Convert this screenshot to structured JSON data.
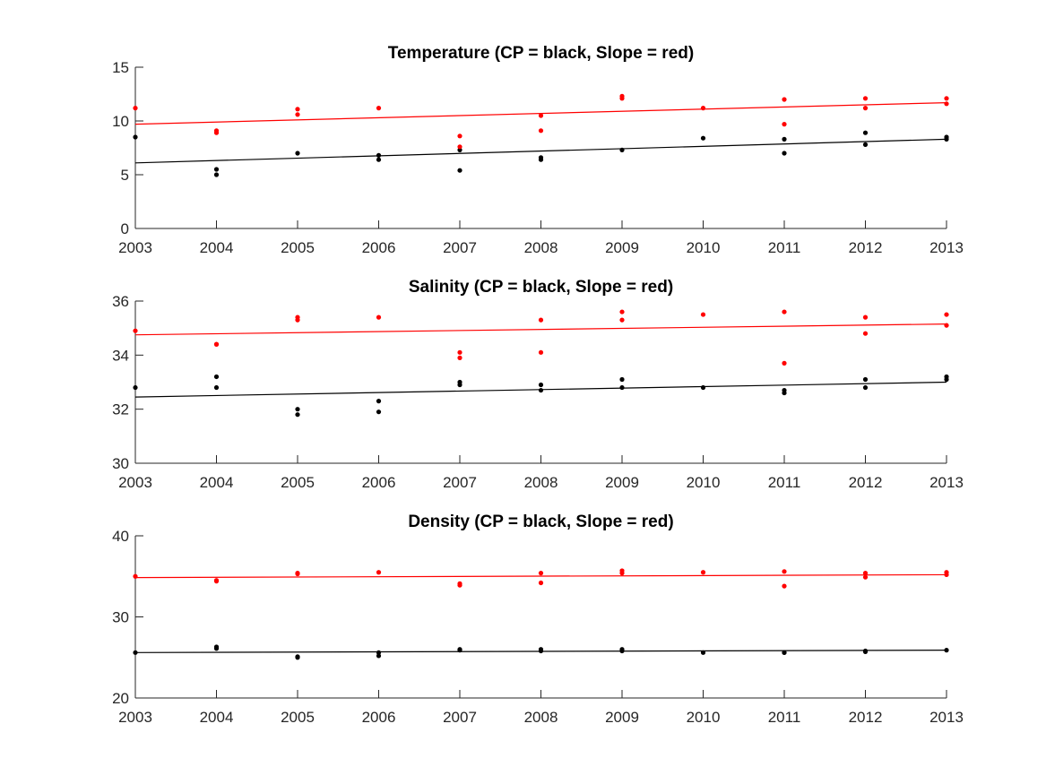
{
  "chart_data": [
    {
      "type": "scatter",
      "title": "Temperature (CP = black, Slope = red)",
      "xlabel": "",
      "ylabel": "",
      "xlim": [
        2003,
        2013
      ],
      "ylim": [
        0,
        15
      ],
      "xticks": [
        "2003",
        "2004",
        "2005",
        "2006",
        "2007",
        "2008",
        "2009",
        "2010",
        "2011",
        "2012",
        "2013"
      ],
      "yticks": [
        "0",
        "5",
        "10",
        "15"
      ],
      "grid": false,
      "series": [
        {
          "color": "#000000",
          "points": [
            [
              2003,
              8.5
            ],
            [
              2004,
              5.5
            ],
            [
              2004,
              5.0
            ],
            [
              2005,
              7.0
            ],
            [
              2006,
              6.8
            ],
            [
              2006,
              6.4
            ],
            [
              2007,
              7.3
            ],
            [
              2007,
              5.4
            ],
            [
              2008,
              6.6
            ],
            [
              2008,
              6.4
            ],
            [
              2009,
              7.3
            ],
            [
              2010,
              8.4
            ],
            [
              2011,
              8.3
            ],
            [
              2011,
              7.0
            ],
            [
              2012,
              8.9
            ],
            [
              2012,
              7.8
            ],
            [
              2013,
              8.5
            ],
            [
              2013,
              8.3
            ]
          ],
          "trend": [
            [
              2003,
              6.1
            ],
            [
              2013,
              8.3
            ]
          ]
        },
        {
          "color": "#ff0000",
          "points": [
            [
              2003,
              11.2
            ],
            [
              2004,
              9.1
            ],
            [
              2004,
              8.9
            ],
            [
              2005,
              11.1
            ],
            [
              2005,
              10.6
            ],
            [
              2006,
              11.2
            ],
            [
              2007,
              8.6
            ],
            [
              2007,
              7.6
            ],
            [
              2008,
              10.5
            ],
            [
              2008,
              9.1
            ],
            [
              2009,
              12.3
            ],
            [
              2009,
              12.1
            ],
            [
              2010,
              11.2
            ],
            [
              2011,
              12.0
            ],
            [
              2011,
              9.7
            ],
            [
              2012,
              12.1
            ],
            [
              2012,
              11.2
            ],
            [
              2013,
              12.1
            ],
            [
              2013,
              11.6
            ]
          ],
          "trend": [
            [
              2003,
              9.7
            ],
            [
              2013,
              11.7
            ]
          ]
        }
      ]
    },
    {
      "type": "scatter",
      "title": "Salinity (CP = black, Slope = red)",
      "xlabel": "",
      "ylabel": "",
      "xlim": [
        2003,
        2013
      ],
      "ylim": [
        30,
        36
      ],
      "xticks": [
        "2003",
        "2004",
        "2005",
        "2006",
        "2007",
        "2008",
        "2009",
        "2010",
        "2011",
        "2012",
        "2013"
      ],
      "yticks": [
        "30",
        "32",
        "34",
        "36"
      ],
      "grid": false,
      "series": [
        {
          "color": "#000000",
          "points": [
            [
              2003,
              32.8
            ],
            [
              2004,
              33.2
            ],
            [
              2004,
              32.8
            ],
            [
              2005,
              32.0
            ],
            [
              2005,
              31.8
            ],
            [
              2006,
              32.3
            ],
            [
              2006,
              31.9
            ],
            [
              2007,
              33.0
            ],
            [
              2007,
              32.9
            ],
            [
              2008,
              32.9
            ],
            [
              2008,
              32.7
            ],
            [
              2009,
              33.1
            ],
            [
              2009,
              32.8
            ],
            [
              2010,
              32.8
            ],
            [
              2011,
              32.7
            ],
            [
              2011,
              32.6
            ],
            [
              2012,
              33.1
            ],
            [
              2012,
              32.8
            ],
            [
              2013,
              33.2
            ],
            [
              2013,
              33.1
            ]
          ],
          "trend": [
            [
              2003,
              32.45
            ],
            [
              2013,
              33.0
            ]
          ]
        },
        {
          "color": "#ff0000",
          "points": [
            [
              2003,
              34.9
            ],
            [
              2004,
              34.4
            ],
            [
              2004,
              34.4
            ],
            [
              2005,
              35.4
            ],
            [
              2005,
              35.3
            ],
            [
              2006,
              35.4
            ],
            [
              2007,
              34.1
            ],
            [
              2007,
              33.9
            ],
            [
              2008,
              35.3
            ],
            [
              2008,
              34.1
            ],
            [
              2009,
              35.6
            ],
            [
              2009,
              35.3
            ],
            [
              2010,
              35.5
            ],
            [
              2011,
              35.6
            ],
            [
              2011,
              33.7
            ],
            [
              2012,
              35.4
            ],
            [
              2012,
              34.8
            ],
            [
              2013,
              35.5
            ],
            [
              2013,
              35.1
            ]
          ],
          "trend": [
            [
              2003,
              34.75
            ],
            [
              2013,
              35.15
            ]
          ]
        }
      ]
    },
    {
      "type": "scatter",
      "title": "Density (CP = black, Slope = red)",
      "xlabel": "",
      "ylabel": "",
      "xlim": [
        2003,
        2013
      ],
      "ylim": [
        20,
        40
      ],
      "xticks": [
        "2003",
        "2004",
        "2005",
        "2006",
        "2007",
        "2008",
        "2009",
        "2010",
        "2011",
        "2012",
        "2013"
      ],
      "yticks": [
        "20",
        "30",
        "40"
      ],
      "grid": false,
      "series": [
        {
          "color": "#000000",
          "points": [
            [
              2003,
              25.6
            ],
            [
              2004,
              26.3
            ],
            [
              2004,
              26.1
            ],
            [
              2005,
              25.1
            ],
            [
              2005,
              25.0
            ],
            [
              2006,
              25.6
            ],
            [
              2006,
              25.2
            ],
            [
              2007,
              26.0
            ],
            [
              2007,
              25.9
            ],
            [
              2008,
              26.0
            ],
            [
              2008,
              25.8
            ],
            [
              2009,
              26.0
            ],
            [
              2009,
              25.8
            ],
            [
              2010,
              25.6
            ],
            [
              2011,
              25.6
            ],
            [
              2011,
              25.6
            ],
            [
              2012,
              25.8
            ],
            [
              2012,
              25.7
            ],
            [
              2013,
              25.9
            ]
          ],
          "trend": [
            [
              2003,
              25.6
            ],
            [
              2013,
              25.9
            ]
          ]
        },
        {
          "color": "#ff0000",
          "points": [
            [
              2003,
              35.0
            ],
            [
              2004,
              34.5
            ],
            [
              2004,
              34.4
            ],
            [
              2005,
              35.4
            ],
            [
              2005,
              35.3
            ],
            [
              2006,
              35.5
            ],
            [
              2007,
              34.1
            ],
            [
              2007,
              33.9
            ],
            [
              2008,
              35.4
            ],
            [
              2008,
              34.2
            ],
            [
              2009,
              35.7
            ],
            [
              2009,
              35.4
            ],
            [
              2010,
              35.5
            ],
            [
              2011,
              35.6
            ],
            [
              2011,
              33.8
            ],
            [
              2012,
              35.4
            ],
            [
              2012,
              34.9
            ],
            [
              2013,
              35.5
            ],
            [
              2013,
              35.2
            ]
          ],
          "trend": [
            [
              2003,
              34.85
            ],
            [
              2013,
              35.2
            ]
          ]
        }
      ]
    }
  ]
}
